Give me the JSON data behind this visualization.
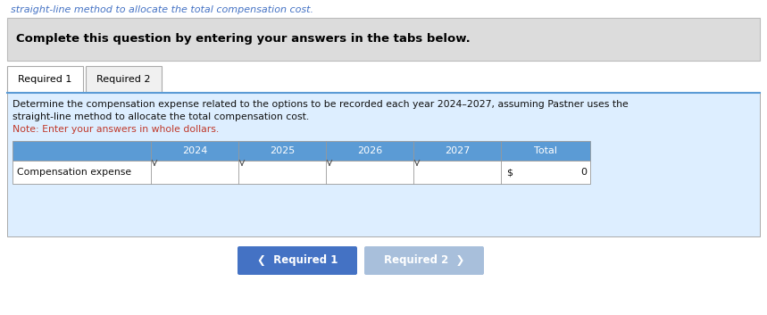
{
  "top_text": "straight-line method to allocate the total compensation cost.",
  "top_text_color": "#4472C4",
  "header_text": "Complete this question by entering your answers in the tabs below.",
  "tab1_label": "Required 1",
  "tab2_label": "Required 2",
  "body_text_line1": "Determine the compensation expense related to the options to be recorded each year 2024–2027, assuming Pastner uses the",
  "body_text_line2": "straight-line method to allocate the total compensation cost.",
  "note_text": "Note: Enter your answers in whole dollars.",
  "note_color": "#C0392B",
  "columns": [
    "",
    "2024",
    "2025",
    "2026",
    "2027",
    "Total"
  ],
  "row_label": "Compensation expense",
  "total_symbol": "$",
  "total_value": "0",
  "bg_color": "#FFFFFF",
  "header_bg": "#DCDCDC",
  "table_header_bg": "#5B9BD5",
  "table_row_bg": "#FFFFFF",
  "tab_active_bg": "#FFFFFF",
  "tab_inactive_bg": "#F0F0F0",
  "content_bg": "#DDEEFF",
  "btn1_bg": "#4472C4",
  "btn2_bg": "#A8BFDB",
  "btn_text_color": "#FFFFFF",
  "border_color": "#BBBBBB",
  "table_border_color": "#999999",
  "body_text_color": "#111111",
  "tab_border_color": "#AAAAAA",
  "blue_line_color": "#5B9BD5"
}
